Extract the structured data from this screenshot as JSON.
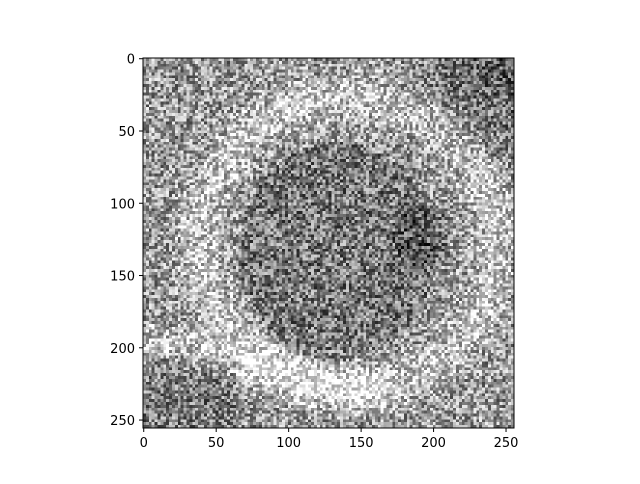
{
  "figure": {
    "background": "#ffffff",
    "colormap": "gray"
  },
  "chart_data": {
    "type": "heatmap",
    "title": "",
    "xlabel": "",
    "ylabel": "",
    "xlim": [
      -0.5,
      255.5
    ],
    "ylim": [
      255.5,
      -0.5
    ],
    "x_ticks": [
      0,
      50,
      100,
      150,
      200,
      250
    ],
    "y_ticks": [
      0,
      50,
      100,
      150,
      200,
      250
    ],
    "x_tick_labels": [
      "0",
      "50",
      "100",
      "150",
      "200",
      "250"
    ],
    "y_tick_labels": [
      "0",
      "50",
      "100",
      "150",
      "200",
      "250"
    ],
    "image_shape": [
      256,
      256
    ],
    "value_range": [
      0,
      255
    ],
    "grid": false,
    "legend": "none"
  }
}
